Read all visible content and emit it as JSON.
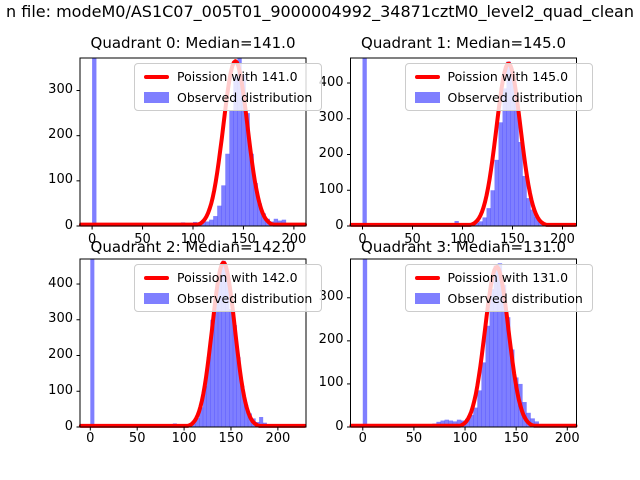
{
  "suptitle": "n file: modeM0/AS1C07_005T01_9000004992_34871cztM0_level2_quad_clean",
  "chart_data": {
    "type": "bar",
    "subtype": "histogram-with-fit-curve",
    "grid": "off",
    "legend_position": "upper-center-inside",
    "hist_color": "#0000ff",
    "hist_alpha": 0.5,
    "curve_color": "#ff0000",
    "xlabel": "",
    "ylabel": "",
    "quadrants": [
      {
        "name": "quadrant-0",
        "title": "Quadrant 0: Median=141.0",
        "median": 141.0,
        "legend": {
          "fit_label": "Poission with 141.0",
          "hist_label": "Observed distribution"
        },
        "xlim": [
          -12,
          212
        ],
        "ylim": [
          0,
          372
        ],
        "xticks": [
          0,
          50,
          100,
          150,
          200
        ],
        "yticks": [
          0,
          100,
          200,
          300
        ],
        "bin_width": 4,
        "zero_spike": {
          "x": 0,
          "clipped_at_top": true
        },
        "bars": [
          [
            84,
            5
          ],
          [
            88,
            8
          ],
          [
            92,
            4
          ],
          [
            96,
            6
          ],
          [
            100,
            9
          ],
          [
            104,
            7
          ],
          [
            108,
            12
          ],
          [
            112,
            10
          ],
          [
            116,
            14
          ],
          [
            120,
            22
          ],
          [
            124,
            45
          ],
          [
            128,
            90
          ],
          [
            132,
            160
          ],
          [
            136,
            255
          ],
          [
            140,
            330
          ],
          [
            144,
            372
          ],
          [
            148,
            335
          ],
          [
            152,
            250
          ],
          [
            156,
            160
          ],
          [
            160,
            95
          ],
          [
            164,
            50
          ],
          [
            168,
            28
          ],
          [
            172,
            16
          ],
          [
            176,
            10
          ],
          [
            180,
            16
          ],
          [
            184,
            12
          ],
          [
            188,
            14
          ],
          [
            192,
            6
          ],
          [
            196,
            3
          ],
          [
            200,
            2
          ]
        ],
        "poisson_curve": {
          "mu": 142,
          "sigma": 12,
          "peak": 365
        }
      },
      {
        "name": "quadrant-1",
        "title": "Quadrant 1: Median=145.0",
        "median": 145.0,
        "legend": {
          "fit_label": "Poission with 145.0",
          "hist_label": "Observed distribution"
        },
        "xlim": [
          -12,
          214
        ],
        "ylim": [
          0,
          470
        ],
        "xticks": [
          0,
          50,
          100,
          150,
          200
        ],
        "yticks": [
          0,
          100,
          200,
          300,
          400
        ],
        "bin_width": 4,
        "zero_spike": {
          "x": 0,
          "clipped_at_top": true
        },
        "bars": [
          [
            40,
            4
          ],
          [
            44,
            5
          ],
          [
            48,
            3
          ],
          [
            56,
            4
          ],
          [
            64,
            3
          ],
          [
            88,
            7
          ],
          [
            92,
            14
          ],
          [
            96,
            5
          ],
          [
            104,
            4
          ],
          [
            108,
            6
          ],
          [
            112,
            9
          ],
          [
            116,
            13
          ],
          [
            120,
            24
          ],
          [
            124,
            50
          ],
          [
            128,
            100
          ],
          [
            132,
            185
          ],
          [
            136,
            290
          ],
          [
            140,
            385
          ],
          [
            144,
            460
          ],
          [
            148,
            430
          ],
          [
            152,
            345
          ],
          [
            156,
            235
          ],
          [
            160,
            140
          ],
          [
            164,
            78
          ],
          [
            168,
            46
          ],
          [
            172,
            26
          ],
          [
            176,
            14
          ],
          [
            180,
            8
          ],
          [
            184,
            6
          ],
          [
            188,
            4
          ],
          [
            196,
            5
          ],
          [
            204,
            6
          ]
        ],
        "poisson_curve": {
          "mu": 146,
          "sigma": 12,
          "peak": 455
        }
      },
      {
        "name": "quadrant-2",
        "title": "Quadrant 2: Median=142.0",
        "median": 142.0,
        "legend": {
          "fit_label": "Poission with 142.0",
          "hist_label": "Observed distribution"
        },
        "xlim": [
          -11,
          230
        ],
        "ylim": [
          0,
          470
        ],
        "xticks": [
          0,
          50,
          100,
          150,
          200
        ],
        "yticks": [
          0,
          100,
          200,
          300,
          400
        ],
        "bin_width": 4,
        "zero_spike": {
          "x": 0,
          "clipped_at_top": true
        },
        "bars": [
          [
            88,
            10
          ],
          [
            92,
            3
          ],
          [
            100,
            4
          ],
          [
            104,
            6
          ],
          [
            108,
            10
          ],
          [
            112,
            25
          ],
          [
            116,
            55
          ],
          [
            120,
            115
          ],
          [
            124,
            195
          ],
          [
            128,
            300
          ],
          [
            132,
            370
          ],
          [
            136,
            435
          ],
          [
            140,
            465
          ],
          [
            144,
            430
          ],
          [
            148,
            330
          ],
          [
            152,
            285
          ],
          [
            156,
            195
          ],
          [
            160,
            115
          ],
          [
            164,
            62
          ],
          [
            168,
            38
          ],
          [
            172,
            24
          ],
          [
            176,
            14
          ],
          [
            180,
            28
          ],
          [
            184,
            12
          ],
          [
            188,
            7
          ],
          [
            192,
            4
          ],
          [
            200,
            3
          ],
          [
            208,
            2
          ],
          [
            212,
            3
          ],
          [
            216,
            4
          ]
        ],
        "poisson_curve": {
          "mu": 142,
          "sigma": 12,
          "peak": 460
        }
      },
      {
        "name": "quadrant-3",
        "title": "Quadrant 3: Median=131.0",
        "median": 131.0,
        "legend": {
          "fit_label": "Poission with 131.0",
          "hist_label": "Observed distribution"
        },
        "xlim": [
          -12,
          209
        ],
        "ylim": [
          0,
          390
        ],
        "xticks": [
          0,
          50,
          100,
          150,
          200
        ],
        "yticks": [
          0,
          100,
          200,
          300
        ],
        "bin_width": 4,
        "zero_spike": {
          "x": 0,
          "clipped_at_top": true
        },
        "bars": [
          [
            64,
            4
          ],
          [
            68,
            8
          ],
          [
            72,
            12
          ],
          [
            76,
            15
          ],
          [
            80,
            17
          ],
          [
            84,
            15
          ],
          [
            88,
            13
          ],
          [
            92,
            17
          ],
          [
            96,
            15
          ],
          [
            100,
            19
          ],
          [
            104,
            28
          ],
          [
            108,
            45
          ],
          [
            112,
            85
          ],
          [
            116,
            150
          ],
          [
            120,
            235
          ],
          [
            124,
            320
          ],
          [
            128,
            375
          ],
          [
            132,
            380
          ],
          [
            136,
            330
          ],
          [
            140,
            255
          ],
          [
            144,
            180
          ],
          [
            148,
            115
          ],
          [
            152,
            100
          ],
          [
            156,
            58
          ],
          [
            160,
            33
          ],
          [
            164,
            20
          ],
          [
            168,
            13
          ],
          [
            172,
            7
          ],
          [
            176,
            4
          ],
          [
            184,
            3
          ],
          [
            192,
            4
          ]
        ],
        "poisson_curve": {
          "mu": 131,
          "sigma": 11.5,
          "peak": 372
        }
      }
    ]
  }
}
